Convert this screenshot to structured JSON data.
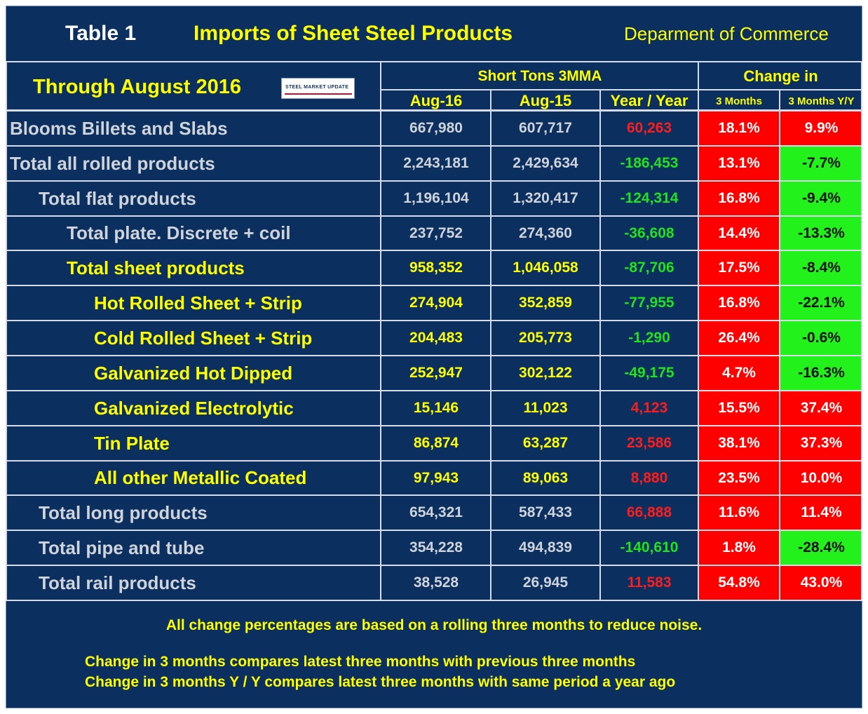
{
  "header": {
    "table_no": "Table 1",
    "title": "Imports of Sheet Steel Products",
    "source": "Deparment of Commerce",
    "period": "Through August 2016",
    "logo_text": "STEEL MARKET UPDATE",
    "group_tons": "Short Tons 3MMA",
    "group_change": "Change in",
    "col_cur": "Aug-16",
    "col_prev": "Aug-15",
    "col_yy": "Year / Year",
    "col_3m": "3 Months",
    "col_3myy": "3 Months Y/Y"
  },
  "rows": [
    {
      "label": "Blooms Billets and Slabs",
      "cur": "667,980",
      "prev": "607,717",
      "yy": "60,263",
      "m3": "18.1%",
      "m3yy": "9.9%",
      "yy_sign": "pos",
      "m3_sign": "pos",
      "m3yy_sign": "pos",
      "tone": "grey"
    },
    {
      "label": "Total all rolled products",
      "cur": "2,243,181",
      "prev": "2,429,634",
      "yy": "-186,453",
      "m3": "13.1%",
      "m3yy": "-7.7%",
      "yy_sign": "neg",
      "m3_sign": "pos",
      "m3yy_sign": "neg",
      "tone": "grey"
    },
    {
      "label": "Total flat products",
      "cur": "1,196,104",
      "prev": "1,320,417",
      "yy": "-124,314",
      "m3": "16.8%",
      "m3yy": "-9.4%",
      "yy_sign": "neg",
      "m3_sign": "pos",
      "m3yy_sign": "neg",
      "tone": "grey"
    },
    {
      "label": "Total plate. Discrete + coil",
      "cur": "237,752",
      "prev": "274,360",
      "yy": "-36,608",
      "m3": "14.4%",
      "m3yy": "-13.3%",
      "yy_sign": "neg",
      "m3_sign": "pos",
      "m3yy_sign": "neg",
      "tone": "grey"
    },
    {
      "label": "Total sheet products",
      "cur": "958,352",
      "prev": "1,046,058",
      "yy": "-87,706",
      "m3": "17.5%",
      "m3yy": "-8.4%",
      "yy_sign": "neg",
      "m3_sign": "pos",
      "m3yy_sign": "neg",
      "tone": "yellow"
    },
    {
      "label": "Hot Rolled Sheet + Strip",
      "cur": "274,904",
      "prev": "352,859",
      "yy": "-77,955",
      "m3": "16.8%",
      "m3yy": "-22.1%",
      "yy_sign": "neg",
      "m3_sign": "pos",
      "m3yy_sign": "neg",
      "tone": "yellow"
    },
    {
      "label": "Cold Rolled Sheet + Strip",
      "cur": "204,483",
      "prev": "205,773",
      "yy": "-1,290",
      "m3": "26.4%",
      "m3yy": "-0.6%",
      "yy_sign": "neg",
      "m3_sign": "pos",
      "m3yy_sign": "neg",
      "tone": "yellow"
    },
    {
      "label": "Galvanized Hot Dipped",
      "cur": "252,947",
      "prev": "302,122",
      "yy": "-49,175",
      "m3": "4.7%",
      "m3yy": "-16.3%",
      "yy_sign": "neg",
      "m3_sign": "pos",
      "m3yy_sign": "neg",
      "tone": "yellow"
    },
    {
      "label": "Galvanized Electrolytic",
      "cur": "15,146",
      "prev": "11,023",
      "yy": "4,123",
      "m3": "15.5%",
      "m3yy": "37.4%",
      "yy_sign": "pos",
      "m3_sign": "pos",
      "m3yy_sign": "pos",
      "tone": "yellow"
    },
    {
      "label": "Tin Plate",
      "cur": "86,874",
      "prev": "63,287",
      "yy": "23,586",
      "m3": "38.1%",
      "m3yy": "37.3%",
      "yy_sign": "pos",
      "m3_sign": "pos",
      "m3yy_sign": "pos",
      "tone": "yellow"
    },
    {
      "label": "All other Metallic Coated",
      "cur": "97,943",
      "prev": "89,063",
      "yy": "8,880",
      "m3": "23.5%",
      "m3yy": "10.0%",
      "yy_sign": "pos",
      "m3_sign": "pos",
      "m3yy_sign": "pos",
      "tone": "yellow"
    },
    {
      "label": "Total long products",
      "cur": "654,321",
      "prev": "587,433",
      "yy": "66,888",
      "m3": "11.6%",
      "m3yy": "11.4%",
      "yy_sign": "pos",
      "m3_sign": "pos",
      "m3yy_sign": "pos",
      "tone": "grey"
    },
    {
      "label": "Total pipe and tube",
      "cur": "354,228",
      "prev": "494,839",
      "yy": "-140,610",
      "m3": "1.8%",
      "m3yy": "-28.4%",
      "yy_sign": "neg",
      "m3_sign": "pos",
      "m3yy_sign": "neg",
      "tone": "grey"
    },
    {
      "label": "Total rail products",
      "cur": "38,528",
      "prev": "26,945",
      "yy": "11,583",
      "m3": "54.8%",
      "m3yy": "43.0%",
      "yy_sign": "pos",
      "m3_sign": "pos",
      "m3yy_sign": "pos",
      "tone": "grey"
    }
  ],
  "notes": {
    "line1": "All change percentages are based on a rolling three months to reduce noise.",
    "line2": "Change in 3 months compares latest three months with previous three months",
    "line3": "Change in 3 months  Y / Y compares latest three months with same period a year ago"
  },
  "colors": {
    "background": "#0b2f5e",
    "increase": "#ff0000",
    "decrease": "#22f11c",
    "title": "#ffff00"
  }
}
